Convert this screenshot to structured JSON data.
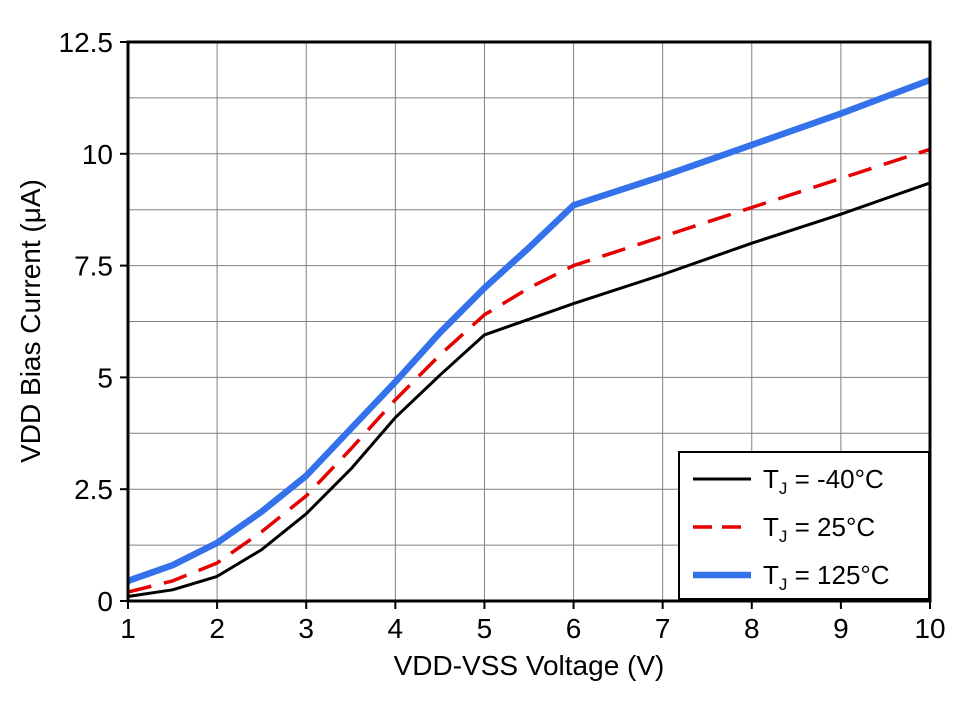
{
  "page": {
    "background_color": "#ffffff"
  },
  "chart_data": {
    "type": "line",
    "title": "",
    "xlabel": "VDD-VSS Voltage (V)",
    "ylabel": "VDD Bias Current (μA)",
    "xlim": [
      1,
      10
    ],
    "ylim": [
      0,
      12.5
    ],
    "grid": true,
    "grid_color": "#808080",
    "frame_color": "#000000",
    "legend_position": "lower right",
    "x_major_ticks": [
      1,
      2,
      3,
      4,
      5,
      6,
      7,
      8,
      9,
      10
    ],
    "x_tick_labels": [
      "1",
      "2",
      "3",
      "4",
      "5",
      "6",
      "7",
      "8",
      "9",
      "10"
    ],
    "y_major_ticks": [
      0,
      2.5,
      5,
      7.5,
      10,
      12.5
    ],
    "y_tick_labels": [
      "0",
      "2.5",
      "5",
      "7.5",
      "10",
      "12.5"
    ],
    "y_minor_gridlines": [
      1.25,
      3.75,
      6.25,
      8.75,
      11.25
    ],
    "series": [
      {
        "id": "tj-minus-40c",
        "name": "TJ = -40°C",
        "label_pre": "T",
        "label_sub": "J",
        "label_post": " = -40°C",
        "color": "#000000",
        "width": 3,
        "dash": null,
        "points": [
          [
            1,
            0.1
          ],
          [
            1.5,
            0.25
          ],
          [
            2,
            0.55
          ],
          [
            2.5,
            1.15
          ],
          [
            3,
            1.95
          ],
          [
            3.5,
            2.95
          ],
          [
            4,
            4.1
          ],
          [
            4.5,
            5.05
          ],
          [
            5,
            5.95
          ],
          [
            6,
            6.65
          ],
          [
            7,
            7.3
          ],
          [
            8,
            8.0
          ],
          [
            9,
            8.65
          ],
          [
            10,
            9.35
          ]
        ]
      },
      {
        "id": "tj-25c",
        "name": "TJ = 25°C",
        "label_pre": "T",
        "label_sub": "J",
        "label_post": " = 25°C",
        "color": "#e60000",
        "width": 3.5,
        "dash": "24 13",
        "points": [
          [
            1,
            0.2
          ],
          [
            1.5,
            0.45
          ],
          [
            2,
            0.85
          ],
          [
            2.5,
            1.55
          ],
          [
            3,
            2.35
          ],
          [
            3.5,
            3.4
          ],
          [
            4,
            4.5
          ],
          [
            4.5,
            5.5
          ],
          [
            5,
            6.4
          ],
          [
            5.5,
            7.0
          ],
          [
            6,
            7.5
          ],
          [
            7,
            8.15
          ],
          [
            8,
            8.8
          ],
          [
            9,
            9.45
          ],
          [
            10,
            10.1
          ]
        ]
      },
      {
        "id": "tj-125c",
        "name": "TJ = 125°C",
        "label_pre": "T",
        "label_sub": "J",
        "label_post": " = 125°C",
        "color": "#3372eb",
        "width": 6.5,
        "dash": null,
        "points": [
          [
            1,
            0.45
          ],
          [
            1.5,
            0.8
          ],
          [
            2,
            1.3
          ],
          [
            2.5,
            2.0
          ],
          [
            3,
            2.8
          ],
          [
            3.5,
            3.85
          ],
          [
            4,
            4.9
          ],
          [
            4.5,
            6.0
          ],
          [
            5,
            7.0
          ],
          [
            5.5,
            7.9
          ],
          [
            6,
            8.85
          ],
          [
            7,
            9.5
          ],
          [
            8,
            10.2
          ],
          [
            9,
            10.9
          ],
          [
            10,
            11.65
          ]
        ]
      }
    ]
  }
}
